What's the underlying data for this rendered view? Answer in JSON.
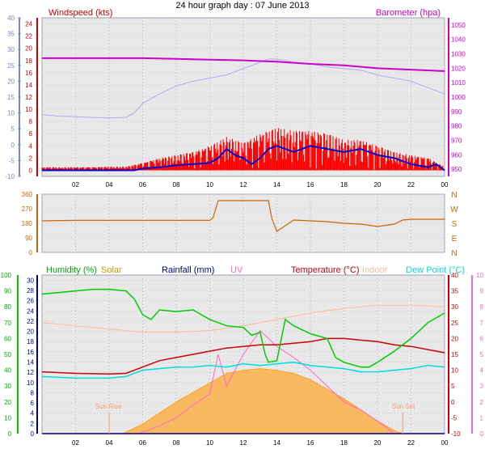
{
  "title": "24 hour graph day : 07 June 2013",
  "colors": {
    "wind_gust": "#ff0000",
    "wind_avg": "#0000cc",
    "pressure": "#cc00cc",
    "temp_avg": "#aab0ee",
    "direction": "#cc6600",
    "humidity": "#00cc00",
    "solar": "#ffaa33",
    "rainfall": "#000088",
    "uv": "#ff66cc",
    "temperature": "#cc0000",
    "indoor": "#ffbb99",
    "dewpoint": "#00dddd"
  },
  "chart_data": [
    {
      "type": "line",
      "panel": "wind",
      "labels": {
        "windspeed": "Windspeed (kts)",
        "barometer": "Barometer (hpa)"
      },
      "x_ticks": [
        "02",
        "04",
        "06",
        "08",
        "10",
        "12",
        "14",
        "16",
        "18",
        "20",
        "22",
        "00"
      ],
      "x_range": [
        0,
        24
      ],
      "y_left": {
        "ticks": [
          -10,
          -5,
          0,
          5,
          10,
          15,
          20,
          25,
          30,
          35,
          40
        ],
        "range": [
          -10,
          40
        ]
      },
      "y_wind": {
        "ticks": [
          0,
          2,
          4,
          6,
          8,
          10,
          12,
          14,
          16,
          18,
          20,
          22,
          24
        ],
        "range": [
          -1,
          25
        ]
      },
      "y_baro": {
        "ticks": [
          950,
          960,
          970,
          980,
          990,
          1000,
          1010,
          1020,
          1030,
          1040,
          1050
        ],
        "range": [
          945,
          1055
        ]
      },
      "series": [
        {
          "name": "Barometer (hpa)",
          "axis": "baro",
          "x": [
            0,
            2,
            4,
            6,
            8,
            10,
            12,
            13,
            14,
            16,
            18,
            20,
            22,
            24
          ],
          "y": [
            1027,
            1027,
            1027,
            1027,
            1026.5,
            1026,
            1025.5,
            1025,
            1024.5,
            1023,
            1022,
            1020,
            1019,
            1018
          ]
        },
        {
          "axis": "left",
          "x": [
            0,
            1,
            2,
            3,
            4,
            5,
            5.5,
            6,
            7,
            8,
            9,
            10,
            11,
            12,
            12.5,
            13,
            13.5,
            14,
            15,
            16,
            17,
            18,
            19,
            20,
            21,
            22,
            23,
            24
          ],
          "y": [
            9.5,
            9,
            8.8,
            8.6,
            8.4,
            8.6,
            10,
            13,
            16,
            18.5,
            20,
            21,
            22,
            24,
            25,
            26,
            27,
            27,
            26,
            25.5,
            24.5,
            24,
            23.5,
            22,
            21,
            20,
            18,
            16
          ]
        },
        {
          "axis": "wind",
          "x": [
            0,
            2,
            4,
            5.5,
            6,
            7,
            8,
            9,
            10,
            10.5,
            11,
            11.5,
            12,
            12.5,
            13,
            13.5,
            14,
            15,
            16,
            17,
            18,
            19,
            20,
            21,
            22,
            23,
            23.5,
            24
          ],
          "y": [
            0,
            0,
            0,
            0,
            0.3,
            0.5,
            0.8,
            1,
            1.2,
            2,
            3.5,
            2.5,
            2,
            1,
            2,
            3.5,
            4,
            3,
            4,
            3.5,
            3,
            3.5,
            2.5,
            2,
            1,
            0.5,
            1,
            0
          ]
        },
        {
          "axis": "wind",
          "x": [
            0,
            1,
            2,
            3,
            4,
            5,
            6,
            7,
            8,
            9,
            10,
            11,
            12,
            13,
            14,
            15,
            16,
            17,
            18,
            19,
            20,
            21,
            22,
            23,
            24
          ],
          "y": [
            0.5,
            0.5,
            0.5,
            0.5,
            0.6,
            0.6,
            1.2,
            2,
            2.5,
            3,
            4,
            5.5,
            4.5,
            6,
            7,
            6.5,
            6.5,
            6,
            5,
            5,
            4,
            3,
            2.5,
            2,
            0.6
          ]
        }
      ]
    },
    {
      "type": "line",
      "panel": "direction",
      "x_range": [
        0,
        24
      ],
      "y_left": {
        "ticks": [
          0,
          90,
          180,
          270,
          360
        ],
        "range": [
          0,
          360
        ]
      },
      "compass": [
        "N",
        "W",
        "S",
        "E",
        "N"
      ],
      "series": [
        {
          "axis": "left",
          "x": [
            0,
            2,
            4,
            6,
            8,
            10,
            10.2,
            10.5,
            12,
            13.5,
            13.7,
            14,
            15,
            16,
            17,
            18,
            19,
            20,
            21,
            21.5,
            22,
            24
          ],
          "y": [
            195,
            198,
            198,
            198,
            198,
            198,
            215,
            320,
            320,
            320,
            210,
            130,
            200,
            195,
            190,
            180,
            175,
            160,
            175,
            200,
            205,
            205
          ]
        }
      ]
    },
    {
      "type": "line",
      "panel": "temperature",
      "labels": {
        "humidity": "Humidity (%)",
        "solar": "Solar",
        "rainfall": "Rainfall (mm)",
        "uv": "UV",
        "temperature": "Temperature (°C)",
        "indoor": "Indoor",
        "dewpoint": "Dew Point (°C)"
      },
      "x_range": [
        0,
        24
      ],
      "y_humidity": {
        "ticks": [
          0,
          10,
          20,
          30,
          40,
          50,
          60,
          70,
          80,
          90,
          100
        ],
        "range": [
          0,
          100
        ]
      },
      "y_rain": {
        "ticks": [
          0,
          2,
          4,
          6,
          8,
          10,
          12,
          14,
          16,
          18,
          20,
          22,
          24,
          26,
          28,
          30
        ],
        "range": [
          0,
          31
        ]
      },
      "y_temp": {
        "ticks": [
          -10,
          -5,
          0,
          5,
          10,
          15,
          20,
          25,
          30,
          35,
          40
        ],
        "range": [
          -10,
          40
        ]
      },
      "y_uv": {
        "ticks": [
          0,
          1,
          2,
          3,
          4,
          5,
          6,
          7,
          8,
          9,
          10
        ],
        "range": [
          0,
          10
        ]
      },
      "annotations": {
        "sunrise": {
          "label": "Sun Rise",
          "hour": 4
        },
        "sunset": {
          "label": "Sun Set",
          "hour": 21.5
        }
      },
      "series": [
        {
          "name": "Humidity (%)",
          "axis": "humidity",
          "x": [
            0,
            1,
            2,
            3,
            4,
            5,
            5.5,
            6,
            6.5,
            7,
            8,
            9,
            10,
            11,
            12,
            12.5,
            13,
            13.3,
            13.5,
            14,
            14.5,
            15,
            16,
            17,
            17.5,
            18,
            19,
            19.5,
            20,
            21,
            22,
            23,
            24
          ],
          "y": [
            88,
            89,
            90,
            91,
            91,
            90,
            85,
            75,
            72,
            78,
            77,
            78,
            72,
            68,
            67,
            62,
            64,
            50,
            45,
            46,
            72,
            68,
            63,
            60,
            48,
            45,
            42,
            42,
            45,
            52,
            60,
            70,
            76
          ]
        },
        {
          "name": "Temperature (°C)",
          "axis": "temp",
          "x": [
            0,
            2,
            4,
            5,
            6,
            7,
            8,
            9,
            10,
            11,
            12,
            13,
            14,
            15,
            16,
            17,
            18,
            19,
            20,
            21,
            22,
            23,
            24
          ],
          "y": [
            9.5,
            9,
            8.8,
            9,
            11,
            13,
            14,
            15,
            16,
            17,
            17.5,
            18,
            18,
            18.5,
            19,
            20,
            20,
            19.5,
            19,
            18,
            17.5,
            16.5,
            15.5
          ]
        },
        {
          "name": "Dew Point (°C)",
          "axis": "temp",
          "x": [
            0,
            2,
            4,
            5,
            6,
            7,
            8,
            9,
            10,
            11,
            12,
            13,
            14,
            15,
            16,
            17,
            18,
            19,
            20,
            21,
            22,
            23,
            24
          ],
          "y": [
            8,
            7.5,
            7.5,
            8,
            10,
            10.5,
            11,
            11,
            11.5,
            11,
            12,
            11.5,
            12,
            12.5,
            11.5,
            11,
            10.5,
            9.5,
            9.5,
            10,
            10.5,
            11.5,
            11
          ]
        },
        {
          "name": "Indoor",
          "axis": "temp",
          "x": [
            0,
            2,
            4,
            6,
            8,
            10,
            12,
            14,
            16,
            18,
            20,
            22,
            24
          ],
          "y": [
            25,
            24,
            23,
            22,
            22,
            22.5,
            24,
            26,
            28,
            29.5,
            30.5,
            30.5,
            30
          ]
        },
        {
          "name": "Solar",
          "axis": "humidity",
          "x": [
            0,
            4.8,
            6,
            8,
            10,
            11,
            12,
            13,
            14,
            15,
            16,
            18,
            20,
            21,
            21.5,
            24
          ],
          "y": [
            0,
            0,
            6,
            20,
            32,
            38,
            40,
            41,
            40,
            38,
            34,
            22,
            8,
            2,
            0,
            0
          ]
        },
        {
          "name": "UV",
          "axis": "uv",
          "x": [
            0,
            5.8,
            7,
            8,
            9,
            10,
            10.5,
            11,
            12,
            13,
            14,
            15,
            16,
            17,
            18,
            19,
            20,
            21,
            24
          ],
          "y": [
            0,
            0,
            0.5,
            1,
            1.8,
            2.5,
            5,
            3,
            5,
            6.5,
            5.5,
            4.8,
            4,
            3,
            2,
            1.5,
            0.8,
            0,
            0
          ]
        },
        {
          "name": "Rainfall (mm)",
          "axis": "rain",
          "x": [
            0,
            24
          ],
          "y": [
            0,
            0
          ]
        }
      ]
    }
  ]
}
